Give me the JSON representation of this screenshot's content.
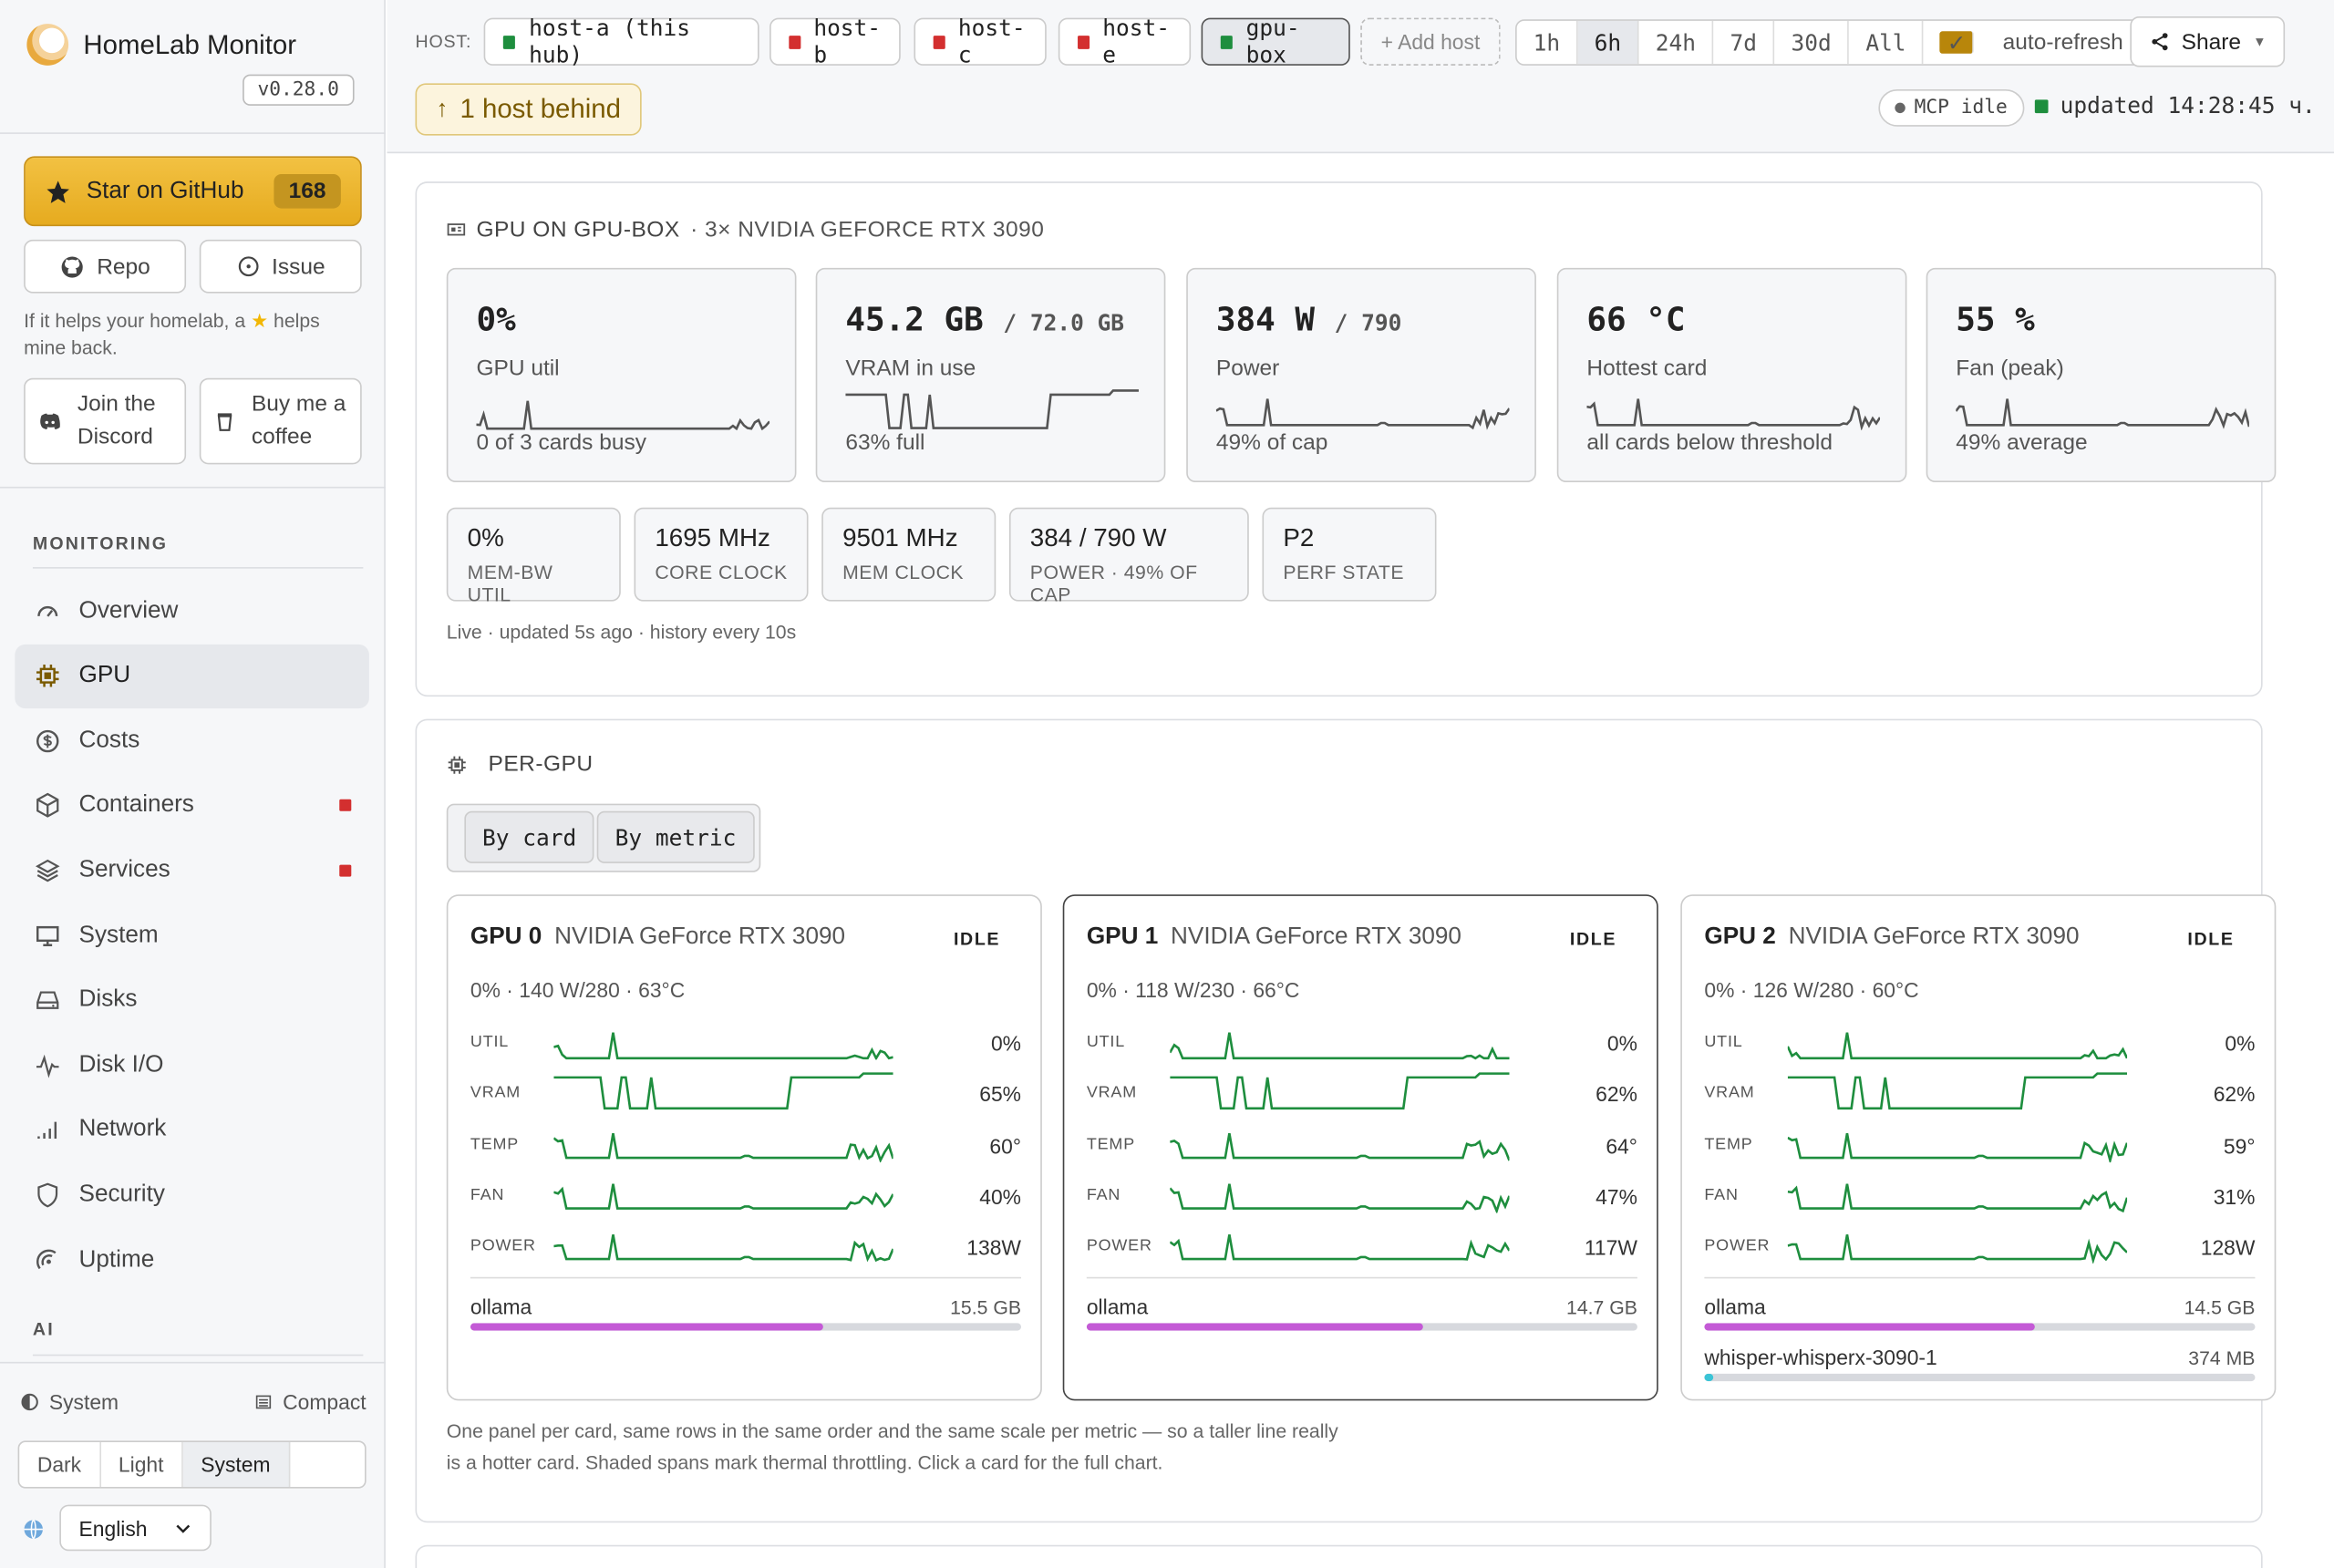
{
  "sidebar": {
    "app_name": "HomeLab Monitor",
    "version": "v0.28.0",
    "star_label": "Star on GitHub",
    "star_count": "168",
    "repo_label": "Repo",
    "issue_label": "Issue",
    "help_pre": "If it helps your homelab, a",
    "help_post": "helps mine back.",
    "discord_label": "Join the Discord",
    "coffee_label": "Buy me a coffee",
    "sections": {
      "monitoring": "MONITORING",
      "ai": "AI"
    },
    "nav": [
      {
        "label": "Overview",
        "icon": "gauge-icon"
      },
      {
        "label": "GPU",
        "icon": "chip-icon",
        "active": true
      },
      {
        "label": "Costs",
        "icon": "dollar-icon"
      },
      {
        "label": "Containers",
        "icon": "box-icon",
        "alert": true
      },
      {
        "label": "Services",
        "icon": "layers-icon",
        "alert": true
      },
      {
        "label": "System",
        "icon": "monitor-icon"
      },
      {
        "label": "Disks",
        "icon": "drive-icon"
      },
      {
        "label": "Disk I/O",
        "icon": "pulse-icon"
      },
      {
        "label": "Network",
        "icon": "signal-icon"
      },
      {
        "label": "Security",
        "icon": "shield-icon"
      },
      {
        "label": "Uptime",
        "icon": "uptime-icon"
      }
    ],
    "theme_label": "System",
    "compact_label": "Compact",
    "theme_options": [
      "Dark",
      "Light",
      "System"
    ],
    "theme_selected": "System",
    "language": "English"
  },
  "topbar": {
    "host_label": "HOST:",
    "hosts": [
      {
        "name": "host-a (this hub)",
        "status_color": "#1e8e3e"
      },
      {
        "name": "host-b",
        "status_color": "#d32f2f"
      },
      {
        "name": "host-c",
        "status_color": "#d32f2f"
      },
      {
        "name": "host-e",
        "status_color": "#d32f2f"
      },
      {
        "name": "gpu-box",
        "status_color": "#1e8e3e",
        "selected": true
      }
    ],
    "add_host": "+ Add host",
    "ranges": [
      "1h",
      "6h",
      "24h",
      "7d",
      "30d",
      "All"
    ],
    "range_selected": "6h",
    "auto_refresh": "auto-refresh",
    "share": "Share",
    "behind": "1 host behind",
    "mcp": "MCP idle",
    "updated": "updated 14:28:45 ч."
  },
  "gpu_panel": {
    "title": "GPU ON GPU-BOX",
    "subtitle": "· 3× NVIDIA GEFORCE RTX 3090",
    "cards": [
      {
        "value": "0%",
        "cap": "",
        "label": "GPU util",
        "sub": "0 of 3 cards busy"
      },
      {
        "value": "45.2 GB",
        "cap": "/ 72.0 GB",
        "label": "VRAM in use",
        "sub": "63% full"
      },
      {
        "value": "384 W",
        "cap": "/ 790",
        "label": "Power",
        "sub": "49% of cap"
      },
      {
        "value": "66 °C",
        "cap": "",
        "label": "Hottest card",
        "sub": "all cards below threshold"
      },
      {
        "value": "55 %",
        "cap": "",
        "label": "Fan (peak)",
        "sub": "49% average"
      }
    ],
    "minis": [
      {
        "value": "0%",
        "label": "MEM-BW UTIL"
      },
      {
        "value": "1695 MHz",
        "label": "CORE CLOCK"
      },
      {
        "value": "9501 MHz",
        "label": "MEM CLOCK"
      },
      {
        "value": "384 / 790 W",
        "label": "POWER · 49% OF CAP"
      },
      {
        "value": "P2",
        "label": "PERF STATE"
      }
    ],
    "live_note": "Live · updated 5s ago · history every 10s"
  },
  "per_gpu": {
    "title": "PER-GPU",
    "tabs": [
      "By card",
      "By metric"
    ],
    "metric_labels": [
      "UTIL",
      "VRAM",
      "TEMP",
      "FAN",
      "POWER"
    ],
    "gpus": [
      {
        "id": "GPU 0",
        "model": "NVIDIA GeForce RTX 3090",
        "state": "IDLE",
        "summary": "0% · 140 W/280 · 63°C",
        "values": [
          "0%",
          "65%",
          "60°",
          "40%",
          "138W"
        ],
        "procs": [
          {
            "name": "ollama",
            "mem": "15.5 GB",
            "fraction": 0.64,
            "color": "#c45ad6"
          }
        ]
      },
      {
        "id": "GPU 1",
        "model": "NVIDIA GeForce RTX 3090",
        "state": "IDLE",
        "summary": "0% · 118 W/230 · 66°C",
        "values": [
          "0%",
          "62%",
          "64°",
          "47%",
          "117W"
        ],
        "selected": true,
        "procs": [
          {
            "name": "ollama",
            "mem": "14.7 GB",
            "fraction": 0.61,
            "color": "#c45ad6"
          }
        ]
      },
      {
        "id": "GPU 2",
        "model": "NVIDIA GeForce RTX 3090",
        "state": "IDLE",
        "summary": "0% · 126 W/280 · 60°C",
        "values": [
          "0%",
          "62%",
          "59°",
          "31%",
          "128W"
        ],
        "procs": [
          {
            "name": "ollama",
            "mem": "14.5 GB",
            "fraction": 0.6,
            "color": "#c45ad6"
          },
          {
            "name": "whisper-whisperx-3090-1",
            "mem": "374 MB",
            "fraction": 0.015,
            "color": "#3bc4d6"
          }
        ]
      }
    ],
    "note": "One panel per card, same rows in the same order and the same scale per metric — so a taller line really is a hotter card. Shaded spans mark thermal throttling. Click a card for the full chart."
  },
  "colors": {
    "accent": "#e6ab1f",
    "spark_green": "#1e8e3e",
    "spark_gray": "#555"
  }
}
